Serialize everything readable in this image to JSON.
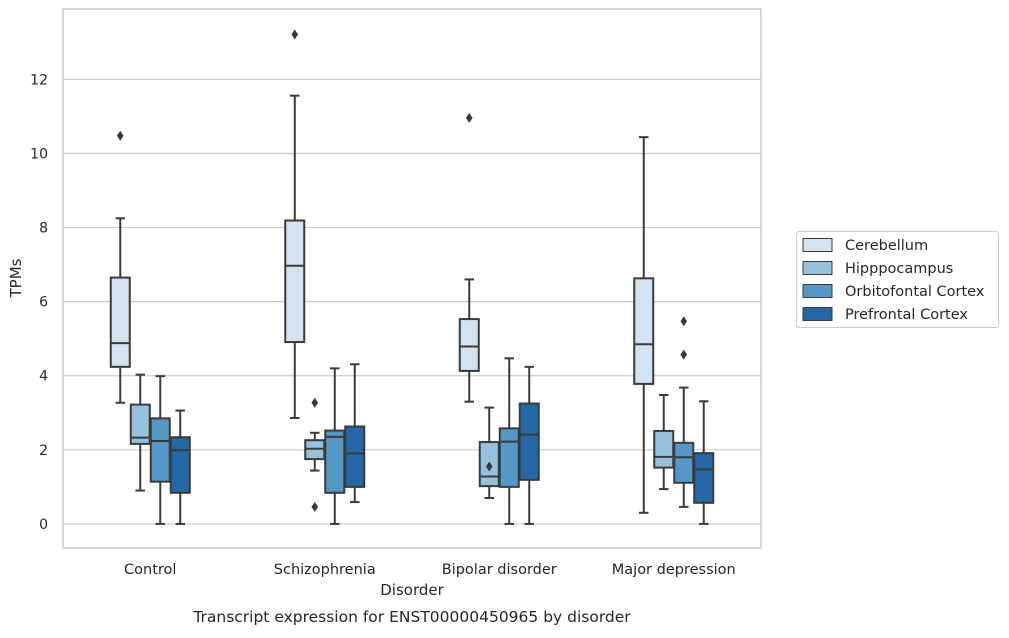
{
  "chart_data": {
    "type": "box",
    "caption": "Transcript expression for ENST00000450965 by disorder",
    "xlabel": "Disorder",
    "ylabel": "TPMs",
    "ylim": [
      -0.65,
      13.9
    ],
    "yticks": [
      0,
      2,
      4,
      6,
      8,
      10,
      12
    ],
    "grid": "horizontal",
    "legend_position": "right",
    "categories": [
      "Control",
      "Schizophrenia",
      "Bipolar disorder",
      "Major depression"
    ],
    "series": [
      {
        "name": "Cerebellum",
        "color": "#d4e3f2",
        "boxes": [
          {
            "whisker_low": 3.27,
            "q1": 4.24,
            "median": 4.88,
            "q3": 6.65,
            "whisker_high": 8.25,
            "outliers": [
              10.48
            ]
          },
          {
            "whisker_low": 2.86,
            "q1": 4.91,
            "median": 6.97,
            "q3": 8.19,
            "whisker_high": 11.56,
            "outliers": [
              13.21
            ]
          },
          {
            "whisker_low": 3.3,
            "q1": 4.13,
            "median": 4.79,
            "q3": 5.53,
            "whisker_high": 6.6,
            "outliers": [
              10.96
            ]
          },
          {
            "whisker_low": 0.3,
            "q1": 3.78,
            "median": 4.85,
            "q3": 6.63,
            "whisker_high": 10.44,
            "outliers": []
          }
        ]
      },
      {
        "name": "Hipppocampus",
        "color": "#97c2de",
        "boxes": [
          {
            "whisker_low": 0.9,
            "q1": 2.16,
            "median": 2.33,
            "q3": 3.22,
            "whisker_high": 4.03,
            "outliers": []
          },
          {
            "whisker_low": 1.44,
            "q1": 1.75,
            "median": 2.03,
            "q3": 2.26,
            "whisker_high": 2.46,
            "outliers": [
              3.27,
              0.46
            ]
          },
          {
            "whisker_low": 0.7,
            "q1": 1.02,
            "median": 1.28,
            "q3": 2.21,
            "whisker_high": 3.14,
            "outliers": [
              1.55
            ]
          },
          {
            "whisker_low": 0.94,
            "q1": 1.52,
            "median": 1.81,
            "q3": 2.51,
            "whisker_high": 3.48,
            "outliers": []
          }
        ]
      },
      {
        "name": "Orbitofontal Cortex",
        "color": "#5597c6",
        "boxes": [
          {
            "whisker_low": 0.0,
            "q1": 1.14,
            "median": 2.24,
            "q3": 2.85,
            "whisker_high": 3.99,
            "outliers": []
          },
          {
            "whisker_low": 0.0,
            "q1": 0.84,
            "median": 2.35,
            "q3": 2.52,
            "whisker_high": 4.2,
            "outliers": []
          },
          {
            "whisker_low": 0.0,
            "q1": 1.0,
            "median": 2.22,
            "q3": 2.58,
            "whisker_high": 4.47,
            "outliers": []
          },
          {
            "whisker_low": 0.46,
            "q1": 1.11,
            "median": 1.8,
            "q3": 2.19,
            "whisker_high": 3.68,
            "outliers": [
              5.47,
              4.57
            ]
          }
        ]
      },
      {
        "name": "Prefrontal Cortex",
        "color": "#2567a6",
        "boxes": [
          {
            "whisker_low": 0.0,
            "q1": 0.84,
            "median": 1.99,
            "q3": 2.34,
            "whisker_high": 3.06,
            "outliers": []
          },
          {
            "whisker_low": 0.59,
            "q1": 1.0,
            "median": 1.9,
            "q3": 2.63,
            "whisker_high": 4.31,
            "outliers": []
          },
          {
            "whisker_low": 0.0,
            "q1": 1.19,
            "median": 2.41,
            "q3": 3.25,
            "whisker_high": 4.24,
            "outliers": []
          },
          {
            "whisker_low": 0.0,
            "q1": 0.57,
            "median": 1.47,
            "q3": 1.91,
            "whisker_high": 3.31,
            "outliers": []
          }
        ]
      }
    ]
  }
}
